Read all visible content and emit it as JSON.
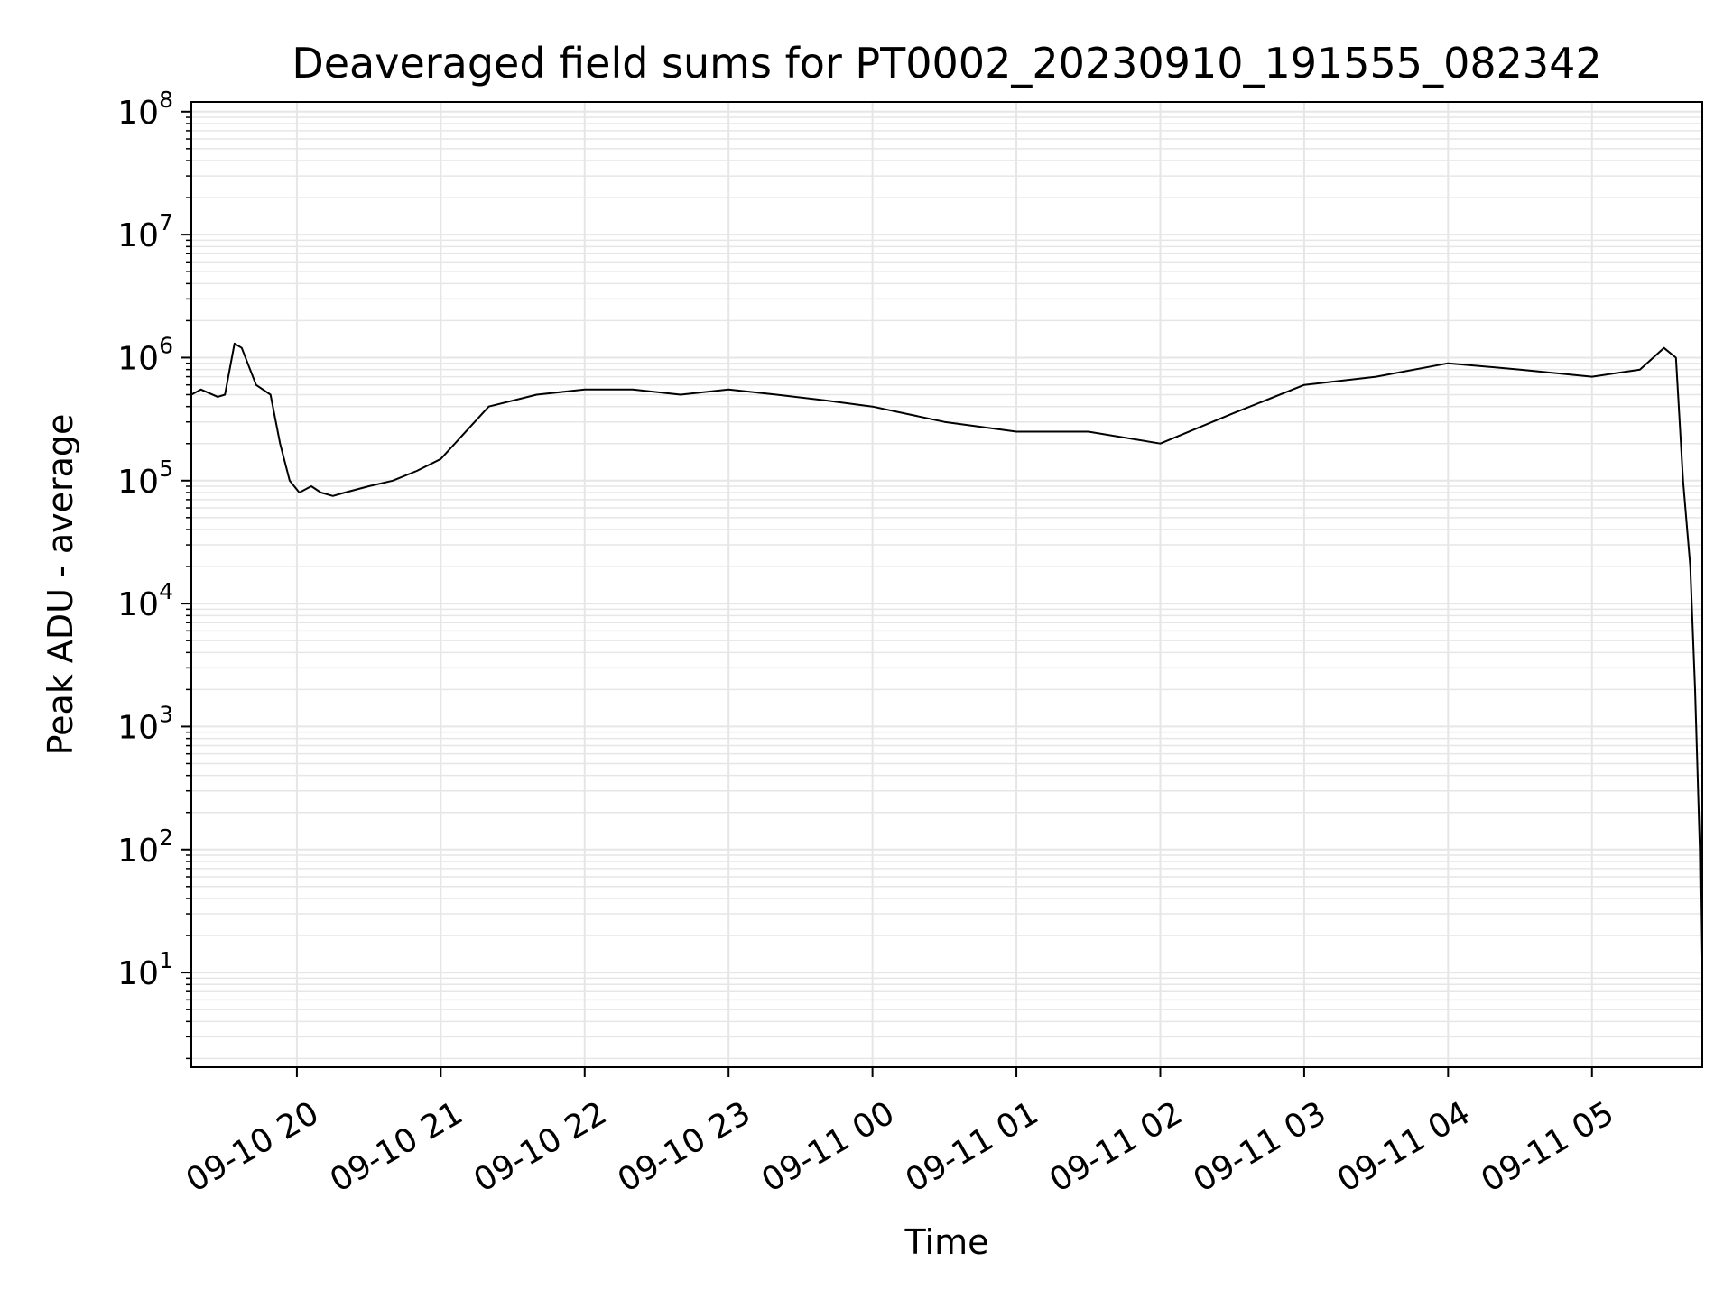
{
  "chart_data": {
    "type": "line",
    "title": "Deaveraged field sums for PT0002_20230910_191555_082342",
    "xlabel": "Time",
    "ylabel": "Peak ADU - average",
    "yscale": "log",
    "ylim": [
      1.7,
      120000000
    ],
    "xlim": [
      "2023-09-10 19:16",
      "2023-09-11 05:46"
    ],
    "grid": true,
    "line_color": "#000000",
    "grid_color": "#e6e6e6",
    "x_ticks": [
      {
        "at": "2023-09-10 20:00",
        "label": "09-10 20"
      },
      {
        "at": "2023-09-10 21:00",
        "label": "09-10 21"
      },
      {
        "at": "2023-09-10 22:00",
        "label": "09-10 22"
      },
      {
        "at": "2023-09-10 23:00",
        "label": "09-10 23"
      },
      {
        "at": "2023-09-11 00:00",
        "label": "09-11 00"
      },
      {
        "at": "2023-09-11 01:00",
        "label": "09-11 01"
      },
      {
        "at": "2023-09-11 02:00",
        "label": "09-11 02"
      },
      {
        "at": "2023-09-11 03:00",
        "label": "09-11 03"
      },
      {
        "at": "2023-09-11 04:00",
        "label": "09-11 04"
      },
      {
        "at": "2023-09-11 05:00",
        "label": "09-11 05"
      }
    ],
    "y_ticks": [
      {
        "value": 10,
        "base": "10",
        "exp": "1"
      },
      {
        "value": 100,
        "base": "10",
        "exp": "2"
      },
      {
        "value": 1000,
        "base": "10",
        "exp": "3"
      },
      {
        "value": 10000,
        "base": "10",
        "exp": "4"
      },
      {
        "value": 100000,
        "base": "10",
        "exp": "5"
      },
      {
        "value": 1000000,
        "base": "10",
        "exp": "6"
      },
      {
        "value": 10000000,
        "base": "10",
        "exp": "7"
      },
      {
        "value": 100000000,
        "base": "10",
        "exp": "8"
      }
    ],
    "series": [
      {
        "x": [
          "2023-09-10 19:16",
          "2023-09-10 19:20",
          "2023-09-10 19:27",
          "2023-09-10 19:30",
          "2023-09-10 19:34",
          "2023-09-10 19:37",
          "2023-09-10 19:43",
          "2023-09-10 19:49",
          "2023-09-10 19:53",
          "2023-09-10 19:57",
          "2023-09-10 20:01",
          "2023-09-10 20:06",
          "2023-09-10 20:10",
          "2023-09-10 20:15",
          "2023-09-10 20:20",
          "2023-09-10 20:30",
          "2023-09-10 20:40",
          "2023-09-10 20:50",
          "2023-09-10 21:00",
          "2023-09-10 21:20",
          "2023-09-10 21:40",
          "2023-09-10 22:00",
          "2023-09-10 22:20",
          "2023-09-10 22:40",
          "2023-09-10 23:00",
          "2023-09-10 23:20",
          "2023-09-10 23:40",
          "2023-09-11 00:00",
          "2023-09-11 00:30",
          "2023-09-11 01:00",
          "2023-09-11 01:30",
          "2023-09-11 02:00",
          "2023-09-11 02:30",
          "2023-09-11 03:00",
          "2023-09-11 03:30",
          "2023-09-11 04:00",
          "2023-09-11 04:30",
          "2023-09-11 05:00",
          "2023-09-11 05:20",
          "2023-09-11 05:30",
          "2023-09-11 05:35",
          "2023-09-11 05:38",
          "2023-09-11 05:41",
          "2023-09-11 05:43",
          "2023-09-11 05:45",
          "2023-09-11 05:46"
        ],
        "y": [
          500000,
          550000,
          480000,
          500000,
          1300000,
          1200000,
          600000,
          500000,
          200000,
          100000,
          80000,
          90000,
          80000,
          75000,
          80000,
          90000,
          100000,
          120000,
          150000,
          400000,
          500000,
          550000,
          550000,
          500000,
          550000,
          500000,
          450000,
          400000,
          300000,
          250000,
          250000,
          200000,
          350000,
          600000,
          700000,
          900000,
          800000,
          700000,
          800000,
          1200000,
          1000000,
          100000,
          20000,
          2000,
          100,
          4
        ]
      }
    ]
  }
}
